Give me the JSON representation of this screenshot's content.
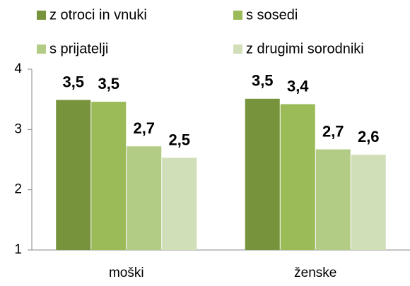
{
  "chart_data": {
    "type": "bar",
    "categories": [
      "moški",
      "ženske"
    ],
    "series": [
      {
        "name": "z otroci in vnuki",
        "color": "#77933c",
        "values": [
          3.49,
          3.51
        ],
        "value_labels": [
          "3,5",
          "3,5"
        ]
      },
      {
        "name": "s sosedi",
        "color": "#9bbb59",
        "values": [
          3.46,
          3.42
        ],
        "value_labels": [
          "3,5",
          "3,4"
        ]
      },
      {
        "name": "s prijatelji",
        "color": "#b3cc85",
        "values": [
          2.72,
          2.67
        ],
        "value_labels": [
          "2,7",
          "2,7"
        ]
      },
      {
        "name": "z drugimi sorodniki",
        "color": "#d0dfb8",
        "values": [
          2.53,
          2.58
        ],
        "value_labels": [
          "2,5",
          "2,6"
        ]
      }
    ],
    "ylim": [
      1,
      4
    ],
    "yticks": [
      1,
      2,
      3,
      4
    ],
    "grid": false
  }
}
